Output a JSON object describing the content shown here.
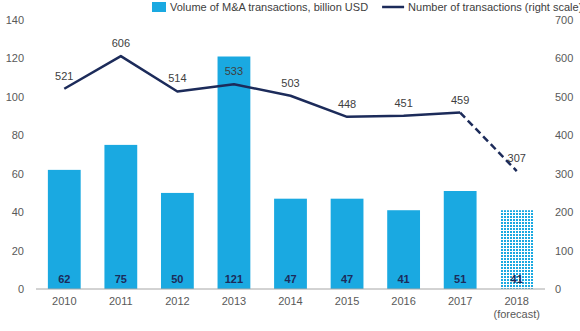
{
  "chart_data": {
    "type": "bar",
    "categories": [
      "2010",
      "2011",
      "2012",
      "2013",
      "2014",
      "2015",
      "2016",
      "2017",
      "2018\n(forecast)"
    ],
    "series": [
      {
        "name": "Volume of M&A transactions, billion USD",
        "type": "bar",
        "color": "#1aa9e1",
        "values": [
          62,
          75,
          50,
          121,
          47,
          47,
          41,
          51,
          41
        ]
      },
      {
        "name": "Number of transactions (right scale)",
        "type": "line",
        "axis": "y2",
        "color": "#1c2b5a",
        "values": [
          521,
          606,
          514,
          533,
          503,
          448,
          451,
          459,
          307
        ]
      }
    ],
    "ylim": [
      0,
      140
    ],
    "yticks": [
      0,
      20,
      40,
      60,
      80,
      100,
      120,
      140
    ],
    "y2lim": [
      0,
      700
    ],
    "y2ticks": [
      0,
      100,
      200,
      300,
      400,
      500,
      600,
      700
    ],
    "data_labels": true,
    "grid": false,
    "legend": "top"
  }
}
